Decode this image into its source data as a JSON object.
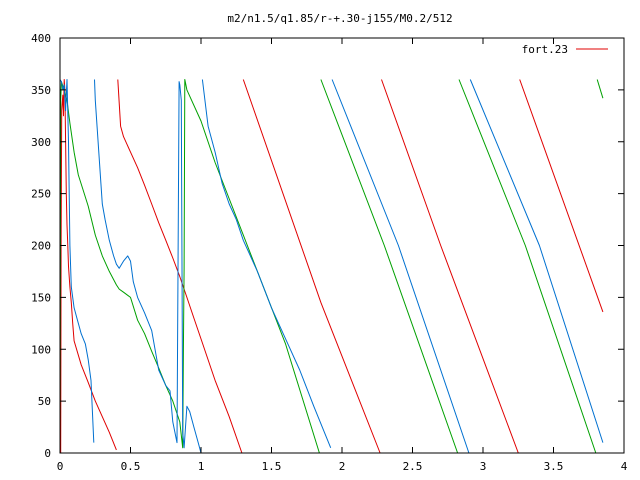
{
  "chart_data": {
    "type": "line",
    "title": "m2/n1.5/q1.85/r-+.30-j155/M0.2/512",
    "xlabel": "",
    "ylabel": "",
    "xlim": [
      0,
      4
    ],
    "ylim": [
      0,
      400
    ],
    "xticks": [
      "0",
      "0.5",
      "1",
      "1.5",
      "2",
      "2.5",
      "3",
      "3.5",
      "4"
    ],
    "xtick_values": [
      0,
      0.5,
      1,
      1.5,
      2,
      2.5,
      3,
      3.5,
      4
    ],
    "yticks": [
      "0",
      "50",
      "100",
      "150",
      "200",
      "250",
      "300",
      "350",
      "400"
    ],
    "ytick_values": [
      0,
      50,
      100,
      150,
      200,
      250,
      300,
      350,
      400
    ],
    "grid": false,
    "legend": {
      "position": "top-right",
      "entries": [
        "fort.23"
      ]
    },
    "colors": {
      "red": "#e00000",
      "green": "#00a000",
      "blue": "#0070d0",
      "axes": "#000000"
    },
    "series": [
      {
        "name": "fort.23",
        "color": "#e00000",
        "segments": [
          [
            [
              0.005,
              0
            ],
            [
              0.008,
              200
            ],
            [
              0.012,
              330
            ],
            [
              0.02,
              345
            ],
            [
              0.025,
              325
            ],
            [
              0.03,
              360
            ],
            [
              0.035,
              350
            ],
            [
              0.04,
              300
            ],
            [
              0.045,
              250
            ],
            [
              0.05,
              220
            ],
            [
              0.055,
              200
            ],
            [
              0.06,
              180
            ],
            [
              0.07,
              160
            ],
            [
              0.08,
              145
            ],
            [
              0.09,
              125
            ],
            [
              0.1,
              108
            ],
            [
              0.15,
              85
            ],
            [
              0.2,
              68
            ],
            [
              0.25,
              50
            ],
            [
              0.3,
              35
            ],
            [
              0.35,
              20
            ],
            [
              0.4,
              3
            ]
          ],
          [
            [
              0.41,
              360
            ],
            [
              0.43,
              315
            ],
            [
              0.45,
              305
            ],
            [
              0.5,
              290
            ],
            [
              0.55,
              275
            ],
            [
              0.6,
              258
            ],
            [
              0.65,
              240
            ],
            [
              0.7,
              222
            ],
            [
              0.75,
              205
            ],
            [
              0.8,
              188
            ],
            [
              0.85,
              170
            ],
            [
              0.9,
              150
            ],
            [
              0.95,
              130
            ],
            [
              1.0,
              110
            ],
            [
              1.1,
              70
            ],
            [
              1.2,
              35
            ],
            [
              1.29,
              0
            ]
          ],
          [
            [
              1.3,
              360
            ],
            [
              1.85,
              145
            ],
            [
              2.27,
              0
            ]
          ],
          [
            [
              2.28,
              360
            ],
            [
              2.7,
              200
            ],
            [
              3.25,
              0
            ]
          ],
          [
            [
              3.26,
              360
            ],
            [
              3.85,
              136
            ]
          ]
        ]
      },
      {
        "name": "",
        "color": "#00a000",
        "segments": [
          [
            [
              0.0,
              0
            ],
            [
              0.005,
              340
            ],
            [
              0.01,
              358
            ],
            [
              0.03,
              350
            ],
            [
              0.05,
              340
            ],
            [
              0.07,
              318
            ],
            [
              0.1,
              290
            ],
            [
              0.13,
              268
            ],
            [
              0.16,
              255
            ],
            [
              0.2,
              238
            ],
            [
              0.25,
              210
            ],
            [
              0.3,
              190
            ],
            [
              0.35,
              175
            ],
            [
              0.4,
              162
            ],
            [
              0.42,
              158
            ],
            [
              0.45,
              155
            ],
            [
              0.48,
              152
            ],
            [
              0.5,
              150
            ],
            [
              0.55,
              128
            ],
            [
              0.6,
              115
            ],
            [
              0.65,
              98
            ],
            [
              0.7,
              82
            ],
            [
              0.75,
              65
            ],
            [
              0.8,
              50
            ],
            [
              0.85,
              30
            ],
            [
              0.87,
              5
            ],
            [
              0.875,
              100
            ],
            [
              0.88,
              178
            ],
            [
              0.885,
              360
            ],
            [
              0.9,
              350
            ],
            [
              1.0,
              320
            ],
            [
              1.1,
              280
            ],
            [
              1.3,
              210
            ],
            [
              1.6,
              105
            ],
            [
              1.84,
              0
            ]
          ],
          [
            [
              1.85,
              360
            ],
            [
              2.3,
              200
            ],
            [
              2.82,
              0
            ]
          ],
          [
            [
              2.83,
              360
            ],
            [
              3.3,
              200
            ],
            [
              3.8,
              0
            ]
          ],
          [
            [
              3.81,
              360
            ],
            [
              3.85,
              342
            ]
          ]
        ]
      },
      {
        "name": "",
        "color": "#0070d0",
        "segments": [
          [
            [
              0.0,
              360
            ],
            [
              0.01,
              358
            ],
            [
              0.02,
              350
            ],
            [
              0.03,
              355
            ],
            [
              0.04,
              330
            ],
            [
              0.05,
              360
            ],
            [
              0.06,
              300
            ],
            [
              0.07,
              200
            ],
            [
              0.08,
              160
            ],
            [
              0.1,
              140
            ],
            [
              0.12,
              130
            ],
            [
              0.15,
              115
            ],
            [
              0.18,
              105
            ],
            [
              0.2,
              90
            ],
            [
              0.22,
              70
            ],
            [
              0.23,
              40
            ],
            [
              0.24,
              10
            ]
          ],
          [
            [
              0.245,
              360
            ],
            [
              0.25,
              340
            ],
            [
              0.27,
              300
            ],
            [
              0.29,
              260
            ],
            [
              0.3,
              240
            ],
            [
              0.32,
              225
            ],
            [
              0.35,
              205
            ],
            [
              0.38,
              190
            ],
            [
              0.4,
              182
            ],
            [
              0.42,
              178
            ],
            [
              0.45,
              185
            ],
            [
              0.48,
              190
            ],
            [
              0.5,
              185
            ],
            [
              0.52,
              165
            ],
            [
              0.55,
              150
            ],
            [
              0.6,
              135
            ],
            [
              0.65,
              118
            ],
            [
              0.7,
              80
            ],
            [
              0.75,
              65
            ],
            [
              0.78,
              60
            ],
            [
              0.8,
              30
            ],
            [
              0.83,
              10
            ],
            [
              0.845,
              358
            ],
            [
              0.85,
              355
            ],
            [
              0.86,
              340
            ],
            [
              0.87,
              20
            ],
            [
              0.88,
              5
            ],
            [
              0.89,
              25
            ],
            [
              0.9,
              45
            ],
            [
              0.92,
              40
            ],
            [
              0.95,
              25
            ],
            [
              0.98,
              10
            ],
            [
              1.0,
              0
            ]
          ],
          [
            [
              1.01,
              360
            ],
            [
              1.05,
              315
            ],
            [
              1.1,
              290
            ],
            [
              1.15,
              260
            ],
            [
              1.2,
              240
            ],
            [
              1.25,
              225
            ],
            [
              1.3,
              205
            ],
            [
              1.4,
              175
            ],
            [
              1.5,
              140
            ],
            [
              1.6,
              110
            ],
            [
              1.7,
              80
            ],
            [
              1.8,
              45
            ],
            [
              1.92,
              5
            ]
          ],
          [
            [
              1.93,
              360
            ],
            [
              2.4,
              200
            ],
            [
              2.9,
              0
            ]
          ],
          [
            [
              2.91,
              360
            ],
            [
              3.4,
              200
            ],
            [
              3.85,
              10
            ]
          ]
        ]
      }
    ]
  }
}
